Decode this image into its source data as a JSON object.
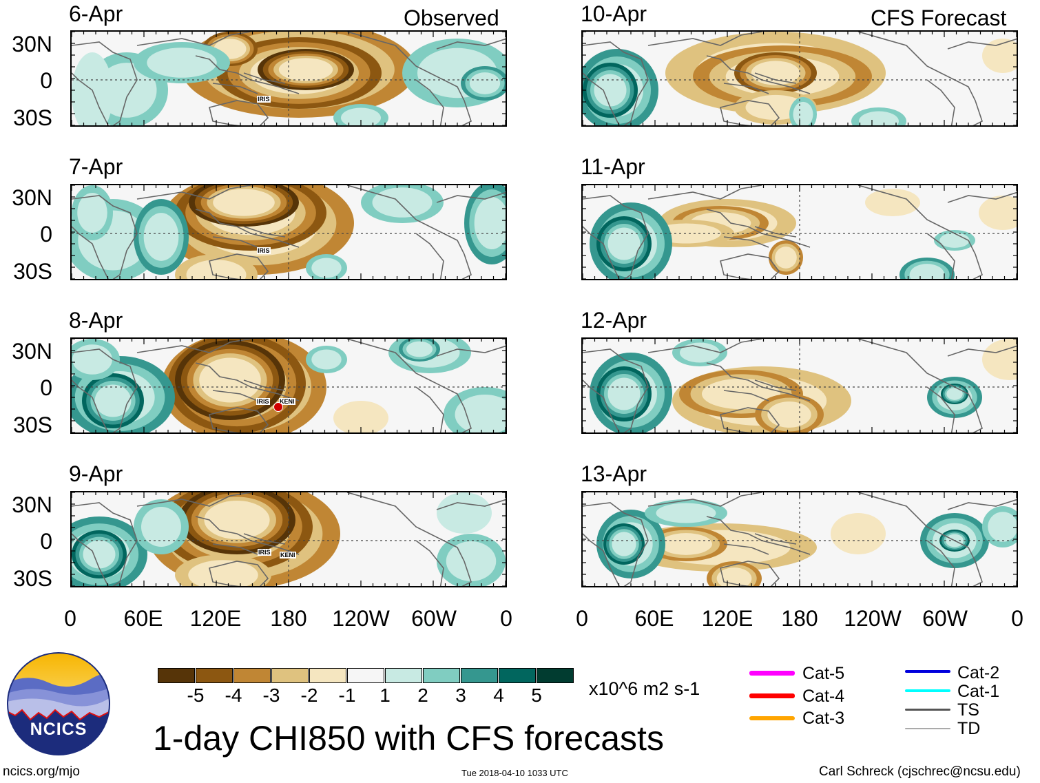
{
  "column_headers": {
    "left": "Observed",
    "right": "CFS Forecast"
  },
  "observed_dates": [
    "6-Apr",
    "7-Apr",
    "8-Apr",
    "9-Apr"
  ],
  "forecast_dates": [
    "10-Apr",
    "11-Apr",
    "12-Apr",
    "13-Apr"
  ],
  "lat_labels": [
    "30N",
    "0",
    "30S"
  ],
  "lon_labels": [
    "0",
    "60E",
    "120E",
    "180",
    "120W",
    "60W",
    "0"
  ],
  "storm_labels": {
    "iris": "IRIS",
    "keni": "KENI"
  },
  "colorbar": {
    "colors": [
      "#563408",
      "#8c5711",
      "#c08634",
      "#dfc27f",
      "#f5e6c0",
      "#f6f6f6",
      "#c8eae3",
      "#80cdc1",
      "#35978f",
      "#01665e",
      "#013c30"
    ],
    "tick_labels": [
      "-5",
      "-4",
      "-3",
      "-2",
      "-1",
      "1",
      "2",
      "3",
      "4",
      "5"
    ],
    "units": "x10^6 m2 s-1"
  },
  "track_legend": [
    {
      "label": "Cat-5",
      "color": "#ff00ff"
    },
    {
      "label": "Cat-4",
      "color": "#ff0000"
    },
    {
      "label": "Cat-3",
      "color": "#ffa500"
    },
    {
      "label": "Cat-2",
      "color": "#0000dd"
    },
    {
      "label": "Cat-1",
      "color": "#00ffff"
    },
    {
      "label": "TS",
      "color": "#555555"
    },
    {
      "label": "TD",
      "color": "#aaaaaa"
    }
  ],
  "title": "1-day CHI850 with CFS forecasts",
  "footer": {
    "left": "ncics.org/mjo",
    "center": "Tue 2018-04-10 1033 UTC",
    "right": "Carl Schreck (cjschrec@ncsu.edu)"
  },
  "logo_text": "NCICS"
}
